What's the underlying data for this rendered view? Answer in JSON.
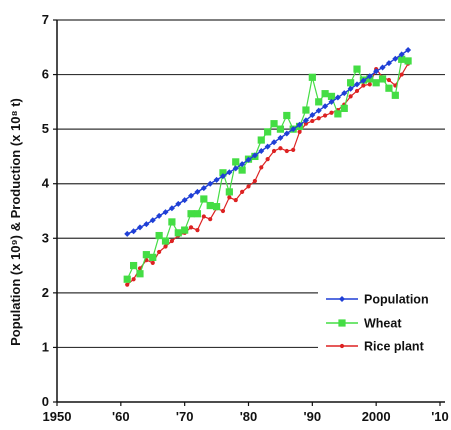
{
  "chart_data": {
    "type": "line",
    "ylabel": "Population (x 10⁹) & Production (x 10⁸ t)",
    "xlim": [
      1950,
      2010
    ],
    "ylim": [
      0,
      7
    ],
    "x_ticks": [
      {
        "value": 1950,
        "label": "1950"
      },
      {
        "value": 1960,
        "label": "'60"
      },
      {
        "value": 1970,
        "label": "'70"
      },
      {
        "value": 1980,
        "label": "'80"
      },
      {
        "value": 1990,
        "label": "'90"
      },
      {
        "value": 2000,
        "label": "2000"
      },
      {
        "value": 2010,
        "label": "'10"
      }
    ],
    "y_ticks": [
      0,
      1,
      2,
      3,
      4,
      5,
      6,
      7
    ],
    "grid": "horizontal",
    "legend_position": "bottom-right",
    "series": [
      {
        "name": "Population",
        "color": "#1f3fd6",
        "marker": "diamond",
        "x": [
          1961,
          1962,
          1963,
          1964,
          1965,
          1966,
          1967,
          1968,
          1969,
          1970,
          1971,
          1972,
          1973,
          1974,
          1975,
          1976,
          1977,
          1978,
          1979,
          1980,
          1981,
          1982,
          1983,
          1984,
          1985,
          1986,
          1987,
          1988,
          1989,
          1990,
          1991,
          1992,
          1993,
          1994,
          1995,
          1996,
          1997,
          1998,
          1999,
          2000,
          2001,
          2002,
          2003,
          2004,
          2005
        ],
        "y": [
          3.08,
          3.13,
          3.2,
          3.26,
          3.33,
          3.41,
          3.48,
          3.55,
          3.63,
          3.7,
          3.78,
          3.85,
          3.92,
          4.0,
          4.07,
          4.14,
          4.21,
          4.28,
          4.36,
          4.44,
          4.52,
          4.6,
          4.68,
          4.76,
          4.84,
          4.92,
          5.0,
          5.08,
          5.16,
          5.26,
          5.34,
          5.42,
          5.5,
          5.58,
          5.66,
          5.74,
          5.82,
          5.89,
          5.97,
          6.06,
          6.13,
          6.21,
          6.29,
          6.37,
          6.45
        ]
      },
      {
        "name": "Wheat",
        "color": "#44dd44",
        "marker": "square",
        "x": [
          1961,
          1962,
          1963,
          1964,
          1965,
          1966,
          1967,
          1968,
          1969,
          1970,
          1971,
          1972,
          1973,
          1974,
          1975,
          1976,
          1977,
          1978,
          1979,
          1980,
          1981,
          1982,
          1983,
          1984,
          1985,
          1986,
          1987,
          1988,
          1989,
          1990,
          1991,
          1992,
          1993,
          1994,
          1995,
          1996,
          1997,
          1998,
          1999,
          2000,
          2001,
          2002,
          2003,
          2004,
          2005
        ],
        "y": [
          2.25,
          2.5,
          2.35,
          2.7,
          2.65,
          3.05,
          2.95,
          3.3,
          3.1,
          3.15,
          3.45,
          3.45,
          3.72,
          3.6,
          3.58,
          4.2,
          3.85,
          4.4,
          4.25,
          4.45,
          4.5,
          4.8,
          4.95,
          5.1,
          5.0,
          5.25,
          5.0,
          5.05,
          5.35,
          5.95,
          5.5,
          5.65,
          5.6,
          5.28,
          5.38,
          5.85,
          6.1,
          5.9,
          5.92,
          5.85,
          5.92,
          5.75,
          5.62,
          6.28,
          6.25
        ]
      },
      {
        "name": "Rice plant",
        "color": "#dd2222",
        "marker": "circle",
        "x": [
          1961,
          1962,
          1963,
          1964,
          1965,
          1966,
          1967,
          1968,
          1969,
          1970,
          1971,
          1972,
          1973,
          1974,
          1975,
          1976,
          1977,
          1978,
          1979,
          1980,
          1981,
          1982,
          1983,
          1984,
          1985,
          1986,
          1987,
          1988,
          1989,
          1990,
          1991,
          1992,
          1993,
          1994,
          1995,
          1996,
          1997,
          1998,
          1999,
          2000,
          2001,
          2002,
          2003,
          2004,
          2005
        ],
        "y": [
          2.15,
          2.25,
          2.45,
          2.6,
          2.55,
          2.75,
          2.85,
          2.95,
          3.05,
          3.1,
          3.2,
          3.15,
          3.4,
          3.35,
          3.55,
          3.5,
          3.75,
          3.7,
          3.85,
          3.95,
          4.05,
          4.3,
          4.45,
          4.6,
          4.65,
          4.6,
          4.62,
          4.95,
          5.1,
          5.15,
          5.2,
          5.25,
          5.3,
          5.35,
          5.45,
          5.6,
          5.7,
          5.8,
          5.82,
          6.1,
          5.95,
          5.9,
          5.8,
          6.0,
          6.2
        ]
      }
    ]
  }
}
